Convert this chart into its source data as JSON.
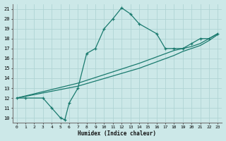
{
  "xlabel": "Humidex (Indice chaleur)",
  "bg_color": "#cce8e8",
  "grid_color": "#b0d4d4",
  "line_color": "#1a7a6e",
  "xlim": [
    -0.5,
    23.5
  ],
  "ylim": [
    9.5,
    21.5
  ],
  "xticks": [
    0,
    1,
    2,
    3,
    4,
    5,
    6,
    7,
    8,
    9,
    10,
    11,
    12,
    13,
    14,
    15,
    16,
    17,
    18,
    19,
    20,
    21,
    22,
    23
  ],
  "yticks": [
    10,
    11,
    12,
    13,
    14,
    15,
    16,
    17,
    18,
    19,
    20,
    21
  ],
  "line1_x": [
    0,
    1,
    3,
    4,
    5,
    5.5,
    6,
    7,
    8,
    9,
    10,
    11,
    12,
    13,
    14,
    16,
    17,
    18,
    19,
    20,
    21,
    22,
    23
  ],
  "line1_y": [
    12,
    12,
    12,
    11,
    10,
    9.8,
    11.5,
    13.0,
    16.5,
    17.0,
    19.0,
    20.0,
    21.1,
    20.5,
    19.5,
    18.5,
    17.0,
    17.0,
    17.0,
    17.5,
    18.0,
    18.0,
    18.5
  ],
  "line2_x": [
    0,
    7,
    14,
    18,
    19,
    20,
    21,
    22,
    23
  ],
  "line2_y": [
    12,
    13.5,
    15.5,
    16.8,
    17.0,
    17.2,
    17.5,
    18.0,
    18.5
  ],
  "line3_x": [
    0,
    7,
    14,
    18,
    19,
    20,
    21,
    22,
    23
  ],
  "line3_y": [
    12,
    13.2,
    15.0,
    16.3,
    16.7,
    17.0,
    17.3,
    17.8,
    18.4
  ]
}
